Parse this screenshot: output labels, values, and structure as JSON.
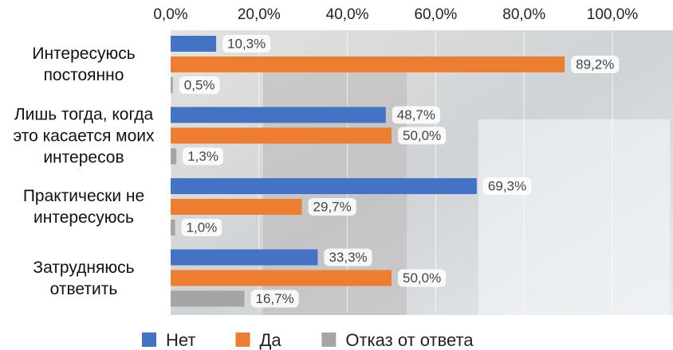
{
  "chart_data": {
    "type": "bar",
    "orientation": "horizontal",
    "categories": [
      "Интересуюсь постоянно",
      "Лишь тогда, когда это касается моих интересов",
      "Практически не интересуюсь",
      "Затрудняюсь ответить"
    ],
    "series": [
      {
        "name": "Нет",
        "color": "#4472c4",
        "values": [
          10.3,
          48.7,
          69.3,
          33.3
        ],
        "value_labels": [
          "10,3%",
          "48,7%",
          "69,3%",
          "33,3%"
        ]
      },
      {
        "name": "Да",
        "color": "#ed7d31",
        "values": [
          89.2,
          50.0,
          29.7,
          50.0
        ],
        "value_labels": [
          "89,2%",
          "50,0%",
          "29,7%",
          "50,0%"
        ]
      },
      {
        "name": "Отказ от ответа",
        "color": "#a5a5a5",
        "values": [
          0.5,
          1.3,
          1.0,
          16.7
        ],
        "value_labels": [
          "0,5%",
          "1,3%",
          "1,0%",
          "16,7%"
        ]
      }
    ],
    "xlim": [
      0,
      100
    ],
    "xticks": [
      {
        "value": 0,
        "label": "0,0%"
      },
      {
        "value": 20,
        "label": "20,0%"
      },
      {
        "value": 40,
        "label": "40,0%"
      },
      {
        "value": 60,
        "label": "60,0%"
      },
      {
        "value": 80,
        "label": "80,0%"
      },
      {
        "value": 100,
        "label": "100,0%"
      }
    ],
    "grid": true,
    "legend": "bottom"
  }
}
